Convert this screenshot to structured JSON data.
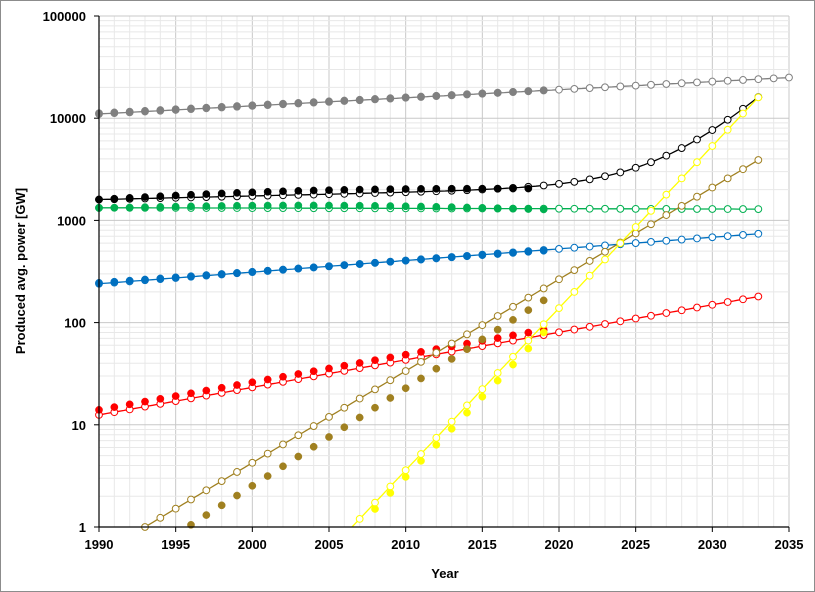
{
  "chart_data": {
    "type": "scatter",
    "title": "",
    "xlabel": "Year",
    "ylabel": "Produced avg. power [GW]",
    "xlim": [
      1990,
      2035
    ],
    "ylim": [
      1,
      100000
    ],
    "yscale": "log",
    "x_ticks": [
      "1990",
      "1995",
      "2000",
      "2005",
      "2010",
      "2015",
      "2020",
      "2025",
      "2030",
      "2035"
    ],
    "y_ticks": [
      "1",
      "10",
      "100",
      "1000",
      "10000",
      "100000"
    ],
    "grid": true,
    "legend": "none",
    "series": [
      {
        "color": "#808080",
        "observed_x": [
          1990,
          2019
        ],
        "observed_start": 11200,
        "observed_end": 18800,
        "fit_x": [
          1990,
          2035
        ],
        "fit_start": 11000,
        "fit_end": 25000
      },
      {
        "color": "#000000",
        "observed_x": [
          1990,
          2018
        ],
        "observed_start": 1600,
        "observed_end": 2050,
        "model_x": [
          1990,
          2033
        ],
        "model_const": 1600,
        "model_b": 2.35,
        "model_r": 0.33,
        "model_t0": 2018,
        "observed_bump": 150
      },
      {
        "color": "#00b050",
        "observed_x": [
          1990,
          2019
        ],
        "observed_start": 1320,
        "observed_end": 1280,
        "observed_bump": 100,
        "fit_x": [
          1990,
          2033
        ],
        "fit_start": 1330,
        "fit_end": 1290
      },
      {
        "color": "#0070c0",
        "observed_x": [
          1990,
          2019
        ],
        "observed_start": 245,
        "observed_end": 505,
        "fit_x": [
          1990,
          2033
        ],
        "fit_start": 240,
        "fit_end": 740
      },
      {
        "color": "#ff0000",
        "observed_x": [
          1990,
          2019
        ],
        "observed_start": 14,
        "observed_end": 85,
        "fit_x": [
          1990,
          2033
        ],
        "fit_start": 12.5,
        "fit_end": 180
      },
      {
        "color": "#a08020",
        "observed_x": [
          1996,
          2019
        ],
        "observed_start": 1.05,
        "observed_end": 165,
        "fit_x": [
          1993,
          2033
        ],
        "fit_start": 1.0,
        "fit_end": 3900
      },
      {
        "color": "#ffff00",
        "observed_x": [
          2008,
          2019
        ],
        "observed_start": 1.5,
        "observed_end": 80,
        "fit_x": [
          2006.5,
          2033
        ],
        "fit_start": 1.0,
        "fit_end": 16000
      }
    ]
  }
}
